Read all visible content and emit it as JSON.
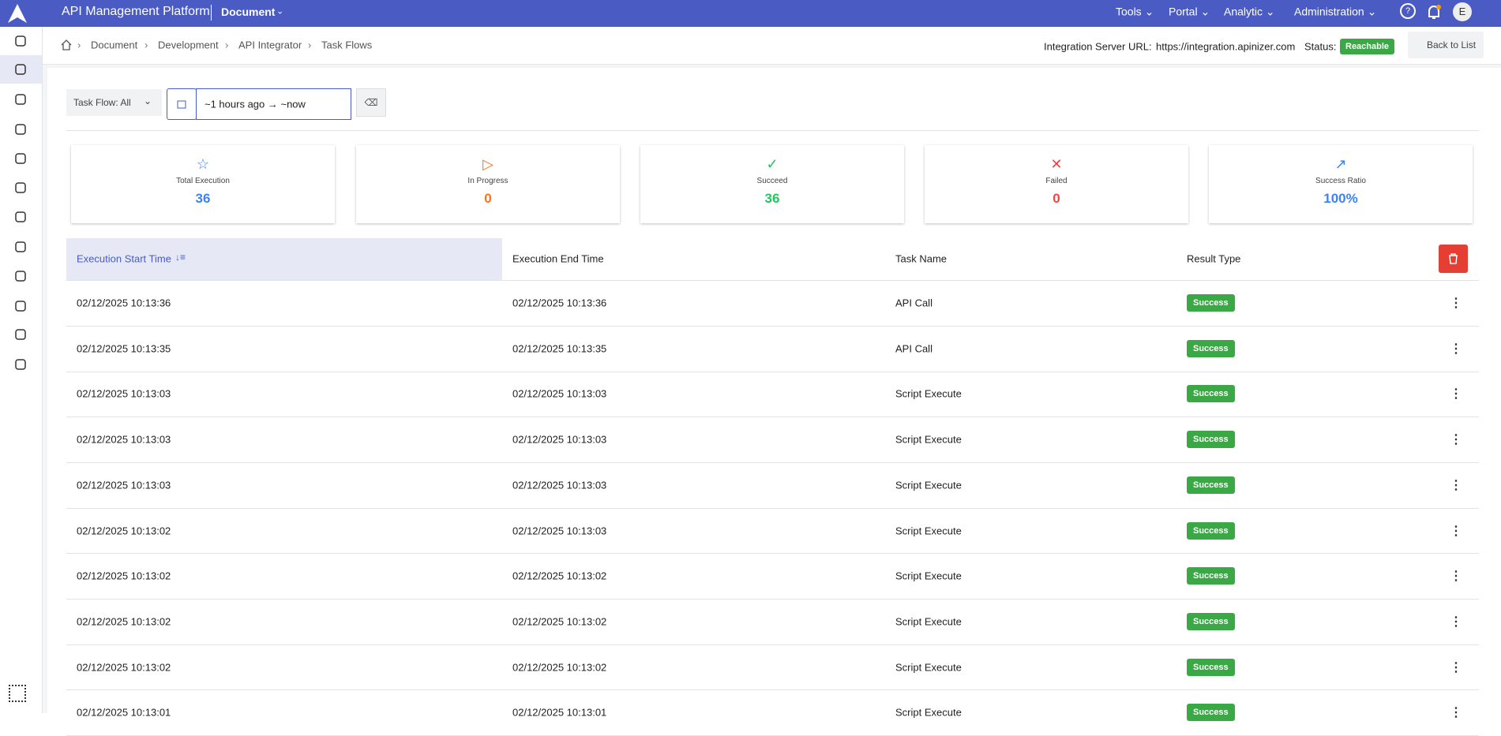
{
  "header": {
    "title": "API Management Platform",
    "document": "Document",
    "menu": [
      "Tools",
      "Portal",
      "Analytic",
      "Administration"
    ],
    "avatar": "E"
  },
  "breadcrumb": [
    "Document",
    "Development",
    "API Integrator",
    "Task Flows"
  ],
  "server": {
    "label": "Integration Server URL:",
    "url": "https://integration.apinizer.com",
    "status_label": "Status:",
    "status": "Reachable",
    "back": "Back to List"
  },
  "filters": {
    "task_flow": "Task Flow: All",
    "range": "~1 hours ago → ~now"
  },
  "stats": [
    {
      "label": "Total Execution",
      "value": "36"
    },
    {
      "label": "In Progress",
      "value": "0"
    },
    {
      "label": "Succeed",
      "value": "36"
    },
    {
      "label": "Failed",
      "value": "0"
    },
    {
      "label": "Success Ratio",
      "value": "100%"
    }
  ],
  "table": {
    "columns": [
      "Execution Start Time",
      "Execution End Time",
      "Task Name",
      "Result Type"
    ],
    "rows": [
      [
        "02/12/2025 10:13:36",
        "02/12/2025 10:13:36",
        "API Call",
        "Success"
      ],
      [
        "02/12/2025 10:13:35",
        "02/12/2025 10:13:35",
        "API Call",
        "Success"
      ],
      [
        "02/12/2025 10:13:03",
        "02/12/2025 10:13:03",
        "Script Execute",
        "Success"
      ],
      [
        "02/12/2025 10:13:03",
        "02/12/2025 10:13:03",
        "Script Execute",
        "Success"
      ],
      [
        "02/12/2025 10:13:03",
        "02/12/2025 10:13:03",
        "Script Execute",
        "Success"
      ],
      [
        "02/12/2025 10:13:02",
        "02/12/2025 10:13:03",
        "Script Execute",
        "Success"
      ],
      [
        "02/12/2025 10:13:02",
        "02/12/2025 10:13:02",
        "Script Execute",
        "Success"
      ],
      [
        "02/12/2025 10:13:02",
        "02/12/2025 10:13:02",
        "Script Execute",
        "Success"
      ],
      [
        "02/12/2025 10:13:02",
        "02/12/2025 10:13:02",
        "Script Execute",
        "Success"
      ],
      [
        "02/12/2025 10:13:01",
        "02/12/2025 10:13:01",
        "Script Execute",
        "Success"
      ]
    ]
  }
}
